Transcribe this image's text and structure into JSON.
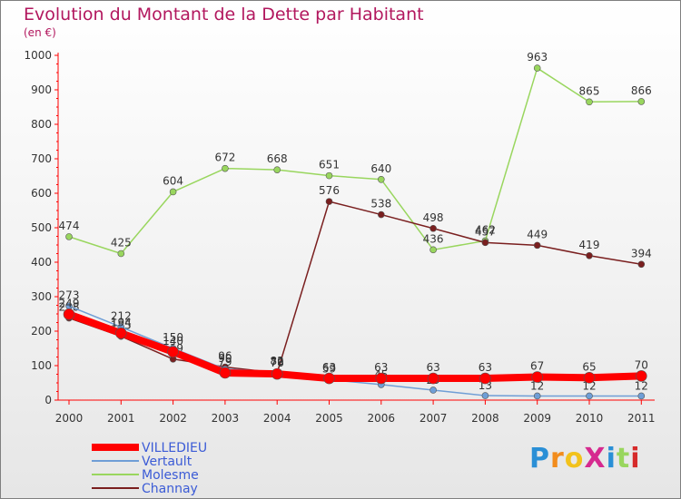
{
  "chart_data": {
    "type": "line",
    "title": "Evolution du Montant de la Dette par Habitant",
    "subtitle": "(en €)",
    "x": [
      "2000",
      "2001",
      "2002",
      "2003",
      "2004",
      "2005",
      "2006",
      "2007",
      "2008",
      "2009",
      "2010",
      "2011"
    ],
    "ylim": [
      0,
      1000
    ],
    "yticks": [
      "0",
      "100",
      "200",
      "300",
      "400",
      "500",
      "600",
      "700",
      "800",
      "900",
      "1000"
    ],
    "grid": false,
    "legend_position": "bottom-left",
    "series": [
      {
        "name": "Molesme",
        "color": "#99d65e",
        "values": [
          474,
          425,
          604,
          672,
          668,
          651,
          640,
          436,
          462,
          963,
          865,
          866
        ],
        "labels": [
          "474",
          "425",
          "604",
          "672",
          "668",
          "651",
          "640",
          "436",
          "462",
          "963",
          "865",
          "866"
        ]
      },
      {
        "name": "Channay",
        "color": "#7a1f1f",
        "values": [
          238,
          185,
          119,
          96,
          79,
          576,
          538,
          498,
          457,
          449,
          419,
          394
        ],
        "labels": [
          "238",
          "185",
          "119",
          "96",
          "79",
          "576",
          "538",
          "498",
          "457",
          "449",
          "419",
          "394"
        ]
      },
      {
        "name": "Vertault",
        "color": "#6f9ed6",
        "values": [
          273,
          212,
          150,
          90,
          82,
          59,
          45,
          29,
          13,
          12,
          12,
          12
        ],
        "labels": [
          "273",
          "212",
          "150",
          "90",
          "82",
          "59",
          "45",
          "29",
          "13",
          "12",
          "12",
          "12"
        ]
      },
      {
        "name": "VILLEDIEU",
        "color": "#ff0000",
        "values": [
          249,
          194,
          140,
          79,
          76,
          63,
          63,
          63,
          63,
          67,
          65,
          70
        ],
        "labels": [
          "249",
          "194",
          "140",
          "79",
          "76",
          "63",
          "63",
          "63",
          "63",
          "67",
          "65",
          "70"
        ]
      }
    ],
    "legend": [
      {
        "name": "VILLEDIEU",
        "color": "#ff0000"
      },
      {
        "name": "Vertault",
        "color": "#6f9ed6"
      },
      {
        "name": "Molesme",
        "color": "#99d65e"
      },
      {
        "name": "Channay",
        "color": "#7a1f1f"
      }
    ]
  },
  "logo": {
    "text": "ProXiti",
    "letter_colors": [
      "#2a8fd6",
      "#f28c1c",
      "#f2c21c",
      "#d62a8f",
      "#2a8fd6",
      "#99d65e",
      "#d62a2a"
    ]
  }
}
